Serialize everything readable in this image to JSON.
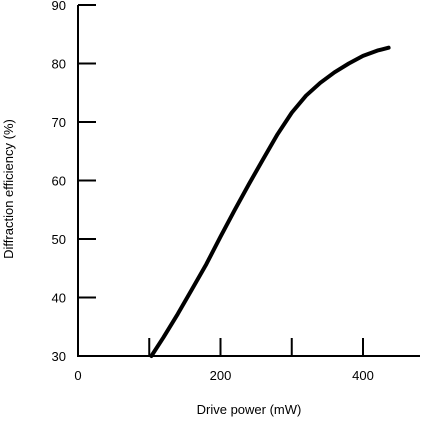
{
  "chart_data": {
    "type": "line",
    "title": "",
    "xlabel": "Drive power (mW)",
    "ylabel": "Diffraction efficiency (%)",
    "xlim": [
      0,
      480
    ],
    "ylim": [
      30,
      90
    ],
    "xticks": [
      0,
      200,
      400
    ],
    "yticks": [
      30,
      40,
      50,
      60,
      70,
      80,
      90
    ],
    "xminor_ticks": [
      100,
      300
    ],
    "grid": false,
    "legend": "none",
    "line_color": "#000000",
    "series": [
      {
        "x": [
          103,
          120,
          140,
          160,
          180,
          200,
          220,
          240,
          260,
          280,
          300,
          320,
          340,
          360,
          380,
          400,
          420,
          436
        ],
        "y": [
          30,
          33.2,
          37.2,
          41.4,
          45.7,
          50.4,
          55.0,
          59.4,
          63.7,
          67.9,
          71.6,
          74.5,
          76.7,
          78.5,
          80.0,
          81.3,
          82.2,
          82.7
        ]
      }
    ]
  }
}
